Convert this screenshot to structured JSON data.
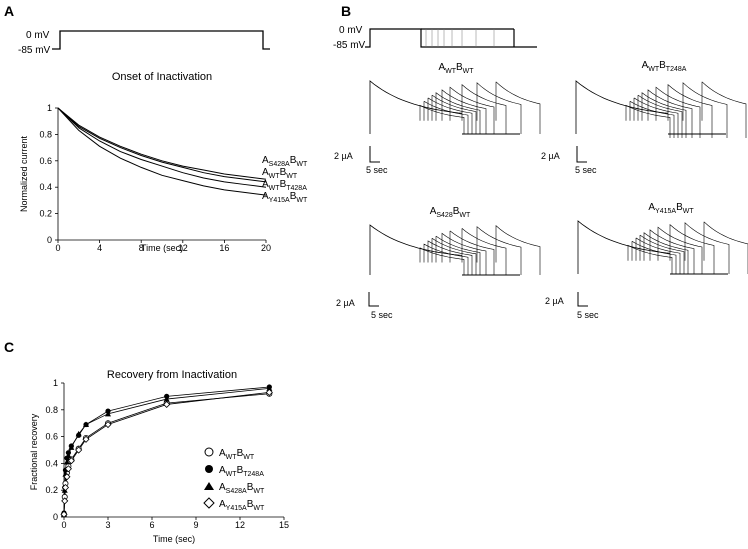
{
  "panels": {
    "a": {
      "letter": "A",
      "protocol": {
        "v_hold": "0 mV",
        "v_rest": "-85 mV"
      },
      "chart_data": {
        "type": "line",
        "title": "Onset of Inactivation",
        "xlabel": "Time (sec)",
        "ylabel": "Normalized current",
        "xlim": [
          0,
          20
        ],
        "ylim": [
          0,
          1.0
        ],
        "xticks": [
          "0",
          "4",
          "8",
          "12",
          "16",
          "20"
        ],
        "yticks": [
          "0",
          "0.2",
          "0.4",
          "0.6",
          "0.8",
          "1"
        ],
        "series": [
          {
            "name": "AS428ABWT",
            "label_main1": "A",
            "label_sub1": "S428A",
            "label_main2": "B",
            "label_sub2": "WT",
            "x": [
              0,
              2,
              4,
              6,
              8,
              10,
              12,
              14,
              16,
              18,
              20
            ],
            "values": [
              1.0,
              0.87,
              0.78,
              0.71,
              0.65,
              0.6,
              0.56,
              0.53,
              0.5,
              0.48,
              0.46
            ]
          },
          {
            "name": "AWTBWT",
            "label_main1": "A",
            "label_sub1": "WT",
            "label_main2": "B",
            "label_sub2": "WT",
            "x": [
              0,
              2,
              4,
              6,
              8,
              10,
              12,
              14,
              16,
              18,
              20
            ],
            "values": [
              1.0,
              0.86,
              0.77,
              0.7,
              0.64,
              0.59,
              0.55,
              0.51,
              0.48,
              0.46,
              0.44
            ]
          },
          {
            "name": "AWTBT428A",
            "label_main1": "A",
            "label_sub1": "WT",
            "label_main2": "B",
            "label_sub2": "T428A",
            "x": [
              0,
              2,
              4,
              6,
              8,
              10,
              12,
              14,
              16,
              18,
              20
            ],
            "values": [
              1.0,
              0.85,
              0.75,
              0.67,
              0.61,
              0.56,
              0.51,
              0.47,
              0.44,
              0.42,
              0.4
            ]
          },
          {
            "name": "AY415ABWT",
            "label_main1": "A",
            "label_sub1": "Y415A",
            "label_main2": "B",
            "label_sub2": "WT",
            "x": [
              0,
              2,
              4,
              6,
              8,
              10,
              12,
              14,
              16,
              18,
              20
            ],
            "values": [
              1.0,
              0.83,
              0.71,
              0.62,
              0.55,
              0.49,
              0.45,
              0.41,
              0.38,
              0.36,
              0.34
            ]
          }
        ]
      }
    },
    "b": {
      "letter": "B",
      "protocol": {
        "v_hold": "0 mV",
        "v_rest": "-85 mV"
      },
      "traces": [
        {
          "main1": "A",
          "sub1": "WT",
          "main2": "B",
          "sub2": "WT"
        },
        {
          "main1": "A",
          "sub1": "WT",
          "main2": "B",
          "sub2": "T248A"
        },
        {
          "main1": "A",
          "sub1": "S428",
          "main2": "B",
          "sub2": "WT"
        },
        {
          "main1": "A",
          "sub1": "Y415A",
          "main2": "B",
          "sub2": "WT"
        }
      ],
      "scale": {
        "current": "2 µA",
        "time": "5 sec"
      }
    },
    "c": {
      "letter": "C",
      "chart_data": {
        "type": "scatter",
        "title": "Recovery from Inactivation",
        "xlabel": "Time (sec)",
        "ylabel": "Fractional recovery",
        "xlim": [
          0,
          15
        ],
        "ylim": [
          0,
          1.0
        ],
        "xticks": [
          "0",
          "3",
          "6",
          "9",
          "12",
          "15"
        ],
        "yticks": [
          "0",
          "0.2",
          "0.4",
          "0.6",
          "0.8",
          "1"
        ],
        "x": [
          0,
          0.05,
          0.1,
          0.2,
          0.3,
          0.5,
          1,
          1.5,
          3,
          7,
          14
        ],
        "series": [
          {
            "name": "AWTBWT",
            "marker": "open-circle",
            "label_main1": "A",
            "label_sub1": "WT",
            "label_main2": "B",
            "label_sub2": "WT",
            "values": [
              0.02,
              0.15,
              0.25,
              0.33,
              0.38,
              0.43,
              0.51,
              0.59,
              0.7,
              0.85,
              0.92
            ]
          },
          {
            "name": "AWTBT248A",
            "marker": "filled-circle",
            "label_main1": "A",
            "label_sub1": "WT",
            "label_main2": "B",
            "label_sub2": "T248A",
            "values": [
              0.03,
              0.22,
              0.35,
              0.44,
              0.48,
              0.53,
              0.61,
              0.69,
              0.79,
              0.9,
              0.97
            ]
          },
          {
            "name": "AS428ABWT",
            "marker": "filled-triangle",
            "label_main1": "A",
            "label_sub1": "S428A",
            "label_main2": "B",
            "label_sub2": "WT",
            "values": [
              0.02,
              0.2,
              0.32,
              0.41,
              0.46,
              0.52,
              0.62,
              0.69,
              0.77,
              0.88,
              0.96
            ]
          },
          {
            "name": "AY415ABWT",
            "marker": "open-diamond",
            "label_main1": "A",
            "label_sub1": "Y415A",
            "label_main2": "B",
            "label_sub2": "WT",
            "values": [
              0.02,
              0.12,
              0.22,
              0.3,
              0.36,
              0.42,
              0.5,
              0.58,
              0.69,
              0.84,
              0.93
            ]
          }
        ]
      }
    }
  }
}
